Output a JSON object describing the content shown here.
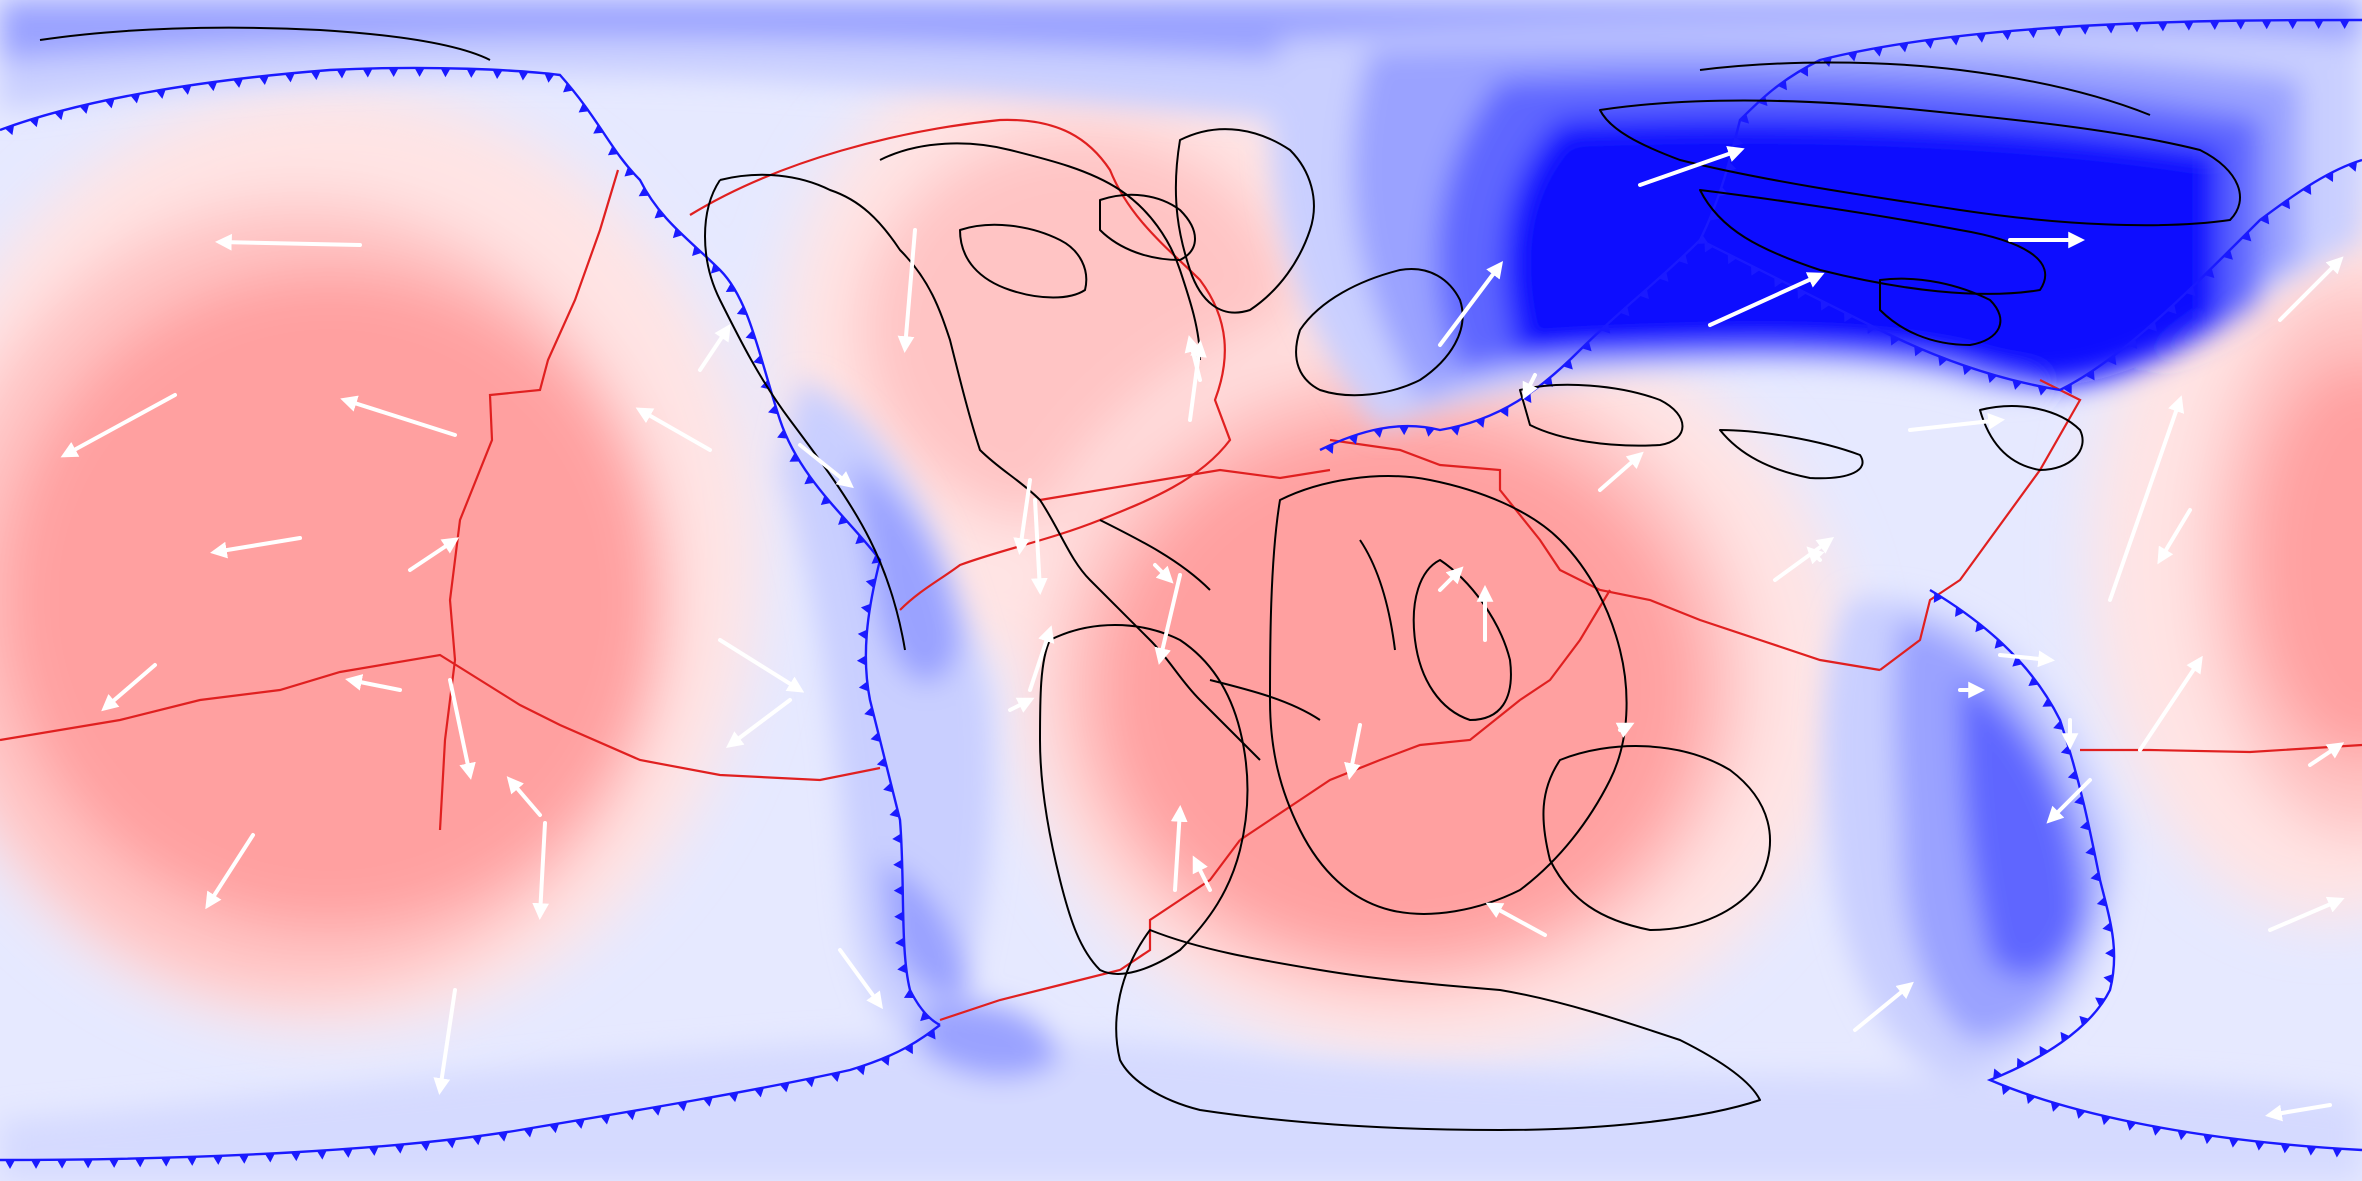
{
  "map": {
    "projection": "equirectangular",
    "palette": {
      "background": "#e6e9ff",
      "red_light": "#ffe4e4",
      "red_mid": "#ffc4c4",
      "red_strong": "#ffa0a0",
      "blue_light": "#c9cfff",
      "blue_mid": "#9aa2ff",
      "blue_strong": "#5f66ff",
      "blue_deep": "#1010ff",
      "coastline": "#000000",
      "ridge_boundary": "#e02020",
      "subduction_boundary": "#1a1aff",
      "velocity_arrow": "#ffffff"
    },
    "legend": {
      "velocity_arrows": "velocity-arrow",
      "ridges": "ridge-boundary",
      "subduction_zones": "subduction-boundary"
    }
  }
}
